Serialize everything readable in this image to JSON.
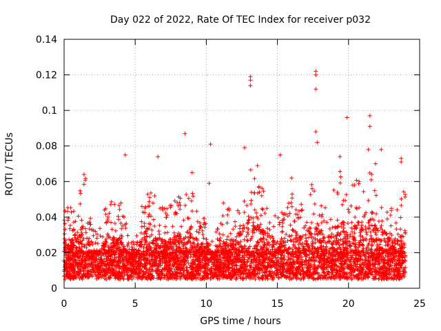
{
  "chart_data": {
    "type": "scatter",
    "title": "Day 022 of 2022, Rate Of TEC Index for receiver p032",
    "xlabel": "GPS time / hours",
    "ylabel": "ROTI / TECUs",
    "xlim": [
      0,
      25
    ],
    "ylim": [
      0,
      0.14
    ],
    "xticks": [
      "0",
      "5",
      "10",
      "15",
      "20",
      "25"
    ],
    "yticks": [
      "0",
      "0.02",
      "0.04",
      "0.06",
      "0.08",
      "0.1",
      "0.12",
      "0.14"
    ],
    "grid": true,
    "marker": "plus",
    "series_color": "#ff0000",
    "data_x_range": [
      0,
      24
    ],
    "dense_band": [
      0.005,
      0.02
    ],
    "outlier_points": [
      {
        "x": 4.3,
        "y": 0.075
      },
      {
        "x": 6.6,
        "y": 0.074
      },
      {
        "x": 8.5,
        "y": 0.087
      },
      {
        "x": 10.3,
        "y": 0.081
      },
      {
        "x": 10.2,
        "y": 0.059
      },
      {
        "x": 9.0,
        "y": 0.065
      },
      {
        "x": 12.7,
        "y": 0.079
      },
      {
        "x": 13.1,
        "y": 0.119
      },
      {
        "x": 13.1,
        "y": 0.117
      },
      {
        "x": 13.1,
        "y": 0.114
      },
      {
        "x": 13.6,
        "y": 0.069
      },
      {
        "x": 15.2,
        "y": 0.075
      },
      {
        "x": 17.7,
        "y": 0.122
      },
      {
        "x": 17.7,
        "y": 0.12
      },
      {
        "x": 17.7,
        "y": 0.112
      },
      {
        "x": 17.7,
        "y": 0.088
      },
      {
        "x": 17.8,
        "y": 0.082
      },
      {
        "x": 19.4,
        "y": 0.074
      },
      {
        "x": 19.9,
        "y": 0.096
      },
      {
        "x": 21.5,
        "y": 0.097
      },
      {
        "x": 21.5,
        "y": 0.091
      },
      {
        "x": 21.4,
        "y": 0.078
      },
      {
        "x": 22.3,
        "y": 0.078
      },
      {
        "x": 23.7,
        "y": 0.073
      },
      {
        "x": 23.7,
        "y": 0.071
      },
      {
        "x": 21.9,
        "y": 0.07
      },
      {
        "x": 1.4,
        "y": 0.064
      },
      {
        "x": 16.0,
        "y": 0.062
      },
      {
        "x": 20.3,
        "y": 0.058
      },
      {
        "x": 11.2,
        "y": 0.048
      }
    ],
    "envelope": [
      {
        "x": 0.0,
        "y": 0.05
      },
      {
        "x": 0.5,
        "y": 0.045
      },
      {
        "x": 1.0,
        "y": 0.055
      },
      {
        "x": 1.5,
        "y": 0.062
      },
      {
        "x": 2.0,
        "y": 0.033
      },
      {
        "x": 2.5,
        "y": 0.035
      },
      {
        "x": 3.0,
        "y": 0.052
      },
      {
        "x": 3.5,
        "y": 0.048
      },
      {
        "x": 4.0,
        "y": 0.05
      },
      {
        "x": 4.5,
        "y": 0.032
      },
      {
        "x": 5.0,
        "y": 0.025
      },
      {
        "x": 5.5,
        "y": 0.048
      },
      {
        "x": 6.0,
        "y": 0.062
      },
      {
        "x": 6.5,
        "y": 0.05
      },
      {
        "x": 7.0,
        "y": 0.045
      },
      {
        "x": 7.5,
        "y": 0.047
      },
      {
        "x": 8.0,
        "y": 0.052
      },
      {
        "x": 8.5,
        "y": 0.052
      },
      {
        "x": 9.0,
        "y": 0.06
      },
      {
        "x": 9.5,
        "y": 0.043
      },
      {
        "x": 10.0,
        "y": 0.04
      },
      {
        "x": 10.5,
        "y": 0.028
      },
      {
        "x": 11.0,
        "y": 0.042
      },
      {
        "x": 11.5,
        "y": 0.048
      },
      {
        "x": 12.0,
        "y": 0.045
      },
      {
        "x": 12.5,
        "y": 0.06
      },
      {
        "x": 13.0,
        "y": 0.068
      },
      {
        "x": 13.5,
        "y": 0.065
      },
      {
        "x": 14.0,
        "y": 0.058
      },
      {
        "x": 14.5,
        "y": 0.055
      },
      {
        "x": 15.0,
        "y": 0.045
      },
      {
        "x": 15.5,
        "y": 0.042
      },
      {
        "x": 16.0,
        "y": 0.06
      },
      {
        "x": 16.5,
        "y": 0.05
      },
      {
        "x": 17.0,
        "y": 0.052
      },
      {
        "x": 17.5,
        "y": 0.065
      },
      {
        "x": 18.0,
        "y": 0.058
      },
      {
        "x": 18.5,
        "y": 0.052
      },
      {
        "x": 19.0,
        "y": 0.06
      },
      {
        "x": 19.5,
        "y": 0.068
      },
      {
        "x": 20.0,
        "y": 0.052
      },
      {
        "x": 20.5,
        "y": 0.06
      },
      {
        "x": 21.0,
        "y": 0.07
      },
      {
        "x": 21.5,
        "y": 0.075
      },
      {
        "x": 22.0,
        "y": 0.068
      },
      {
        "x": 22.5,
        "y": 0.055
      },
      {
        "x": 23.0,
        "y": 0.045
      },
      {
        "x": 23.5,
        "y": 0.045
      },
      {
        "x": 24.0,
        "y": 0.06
      }
    ]
  }
}
